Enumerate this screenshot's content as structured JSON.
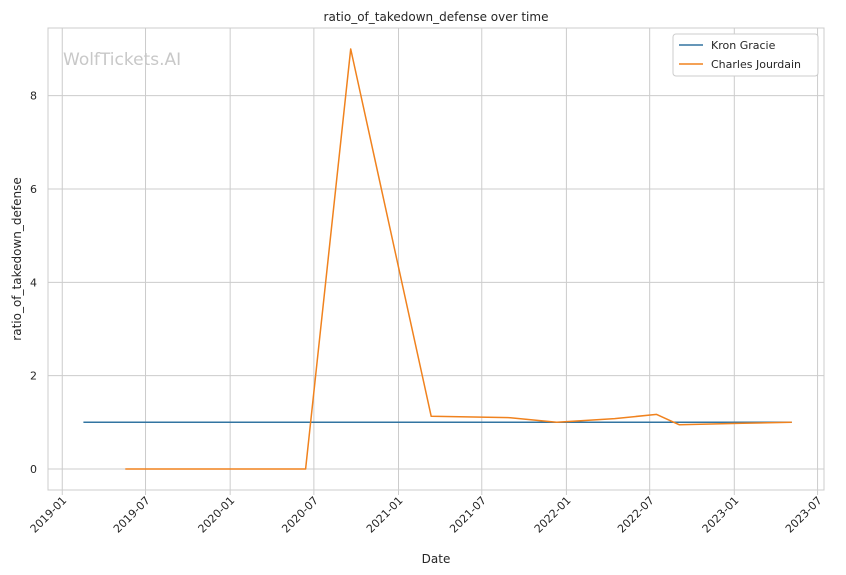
{
  "chart_data": {
    "type": "line",
    "title": "ratio_of_takedown_defense over time",
    "xlabel": "Date",
    "ylabel": "ratio_of_takedown_defense",
    "watermark": "WolfTickets.AI",
    "x_tick_labels": [
      "2019-01",
      "2019-07",
      "2020-01",
      "2020-07",
      "2021-01",
      "2021-07",
      "2022-01",
      "2022-07",
      "2023-01",
      "2023-07"
    ],
    "y_ticks": [
      0,
      2,
      4,
      6,
      8
    ],
    "y_tick_labels": [
      "0",
      "2",
      "4",
      "6",
      "8"
    ],
    "xlim": [
      "2018-12-01",
      "2023-07-15"
    ],
    "ylim": [
      -0.45,
      9.45
    ],
    "grid": true,
    "legend_position": "top-right",
    "series": [
      {
        "name": "Kron Gracie",
        "color": "#3274a1",
        "points": [
          [
            "2019-02-16",
            1.0
          ],
          [
            "2023-05-06",
            1.0
          ]
        ]
      },
      {
        "name": "Charles Jourdain",
        "color": "#f0821e",
        "points": [
          [
            "2019-05-18",
            0.0
          ],
          [
            "2020-06-13",
            0.0
          ],
          [
            "2020-09-19",
            9.0
          ],
          [
            "2021-03-13",
            1.13
          ],
          [
            "2021-09-01",
            1.1
          ],
          [
            "2021-12-11",
            1.0
          ],
          [
            "2022-04-16",
            1.08
          ],
          [
            "2022-07-16",
            1.17
          ],
          [
            "2022-09-03",
            0.95
          ],
          [
            "2023-01-20",
            0.98
          ],
          [
            "2023-05-06",
            1.0
          ]
        ]
      }
    ]
  }
}
